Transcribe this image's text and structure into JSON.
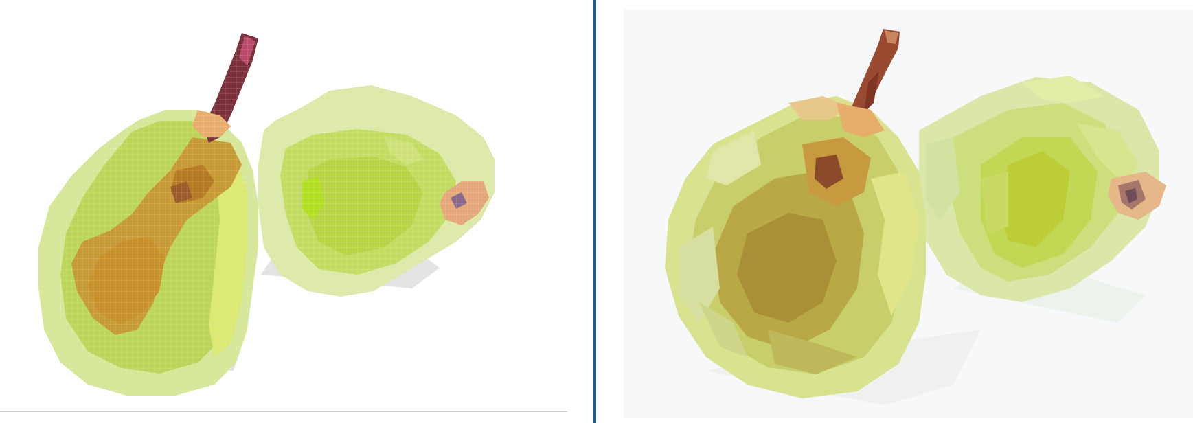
{
  "panels": [
    {
      "id": "pixelated-view",
      "style": "pixelated",
      "subject": "two-pears-icon"
    },
    {
      "id": "low-poly-view",
      "style": "low-poly",
      "subject": "two-pears-icon"
    }
  ],
  "colors": {
    "background": "#ffffff",
    "right_canvas": "#f6f8f9",
    "divider": "#1f5f8f",
    "bottom_rule": "#c9cdd2",
    "pear_green_light": "#d9e8a0",
    "pear_green": "#b9d458",
    "pear_green_dark": "#9fb83a",
    "pear_yellow": "#dce86a",
    "pear_ochre": "#c8912a",
    "pear_ochre_dark": "#a9791f",
    "stem": "#7a2f3a",
    "stem_low_poly": "#9a4a30",
    "blossom": "#e8a070",
    "shadow": "#dcdcdc"
  }
}
